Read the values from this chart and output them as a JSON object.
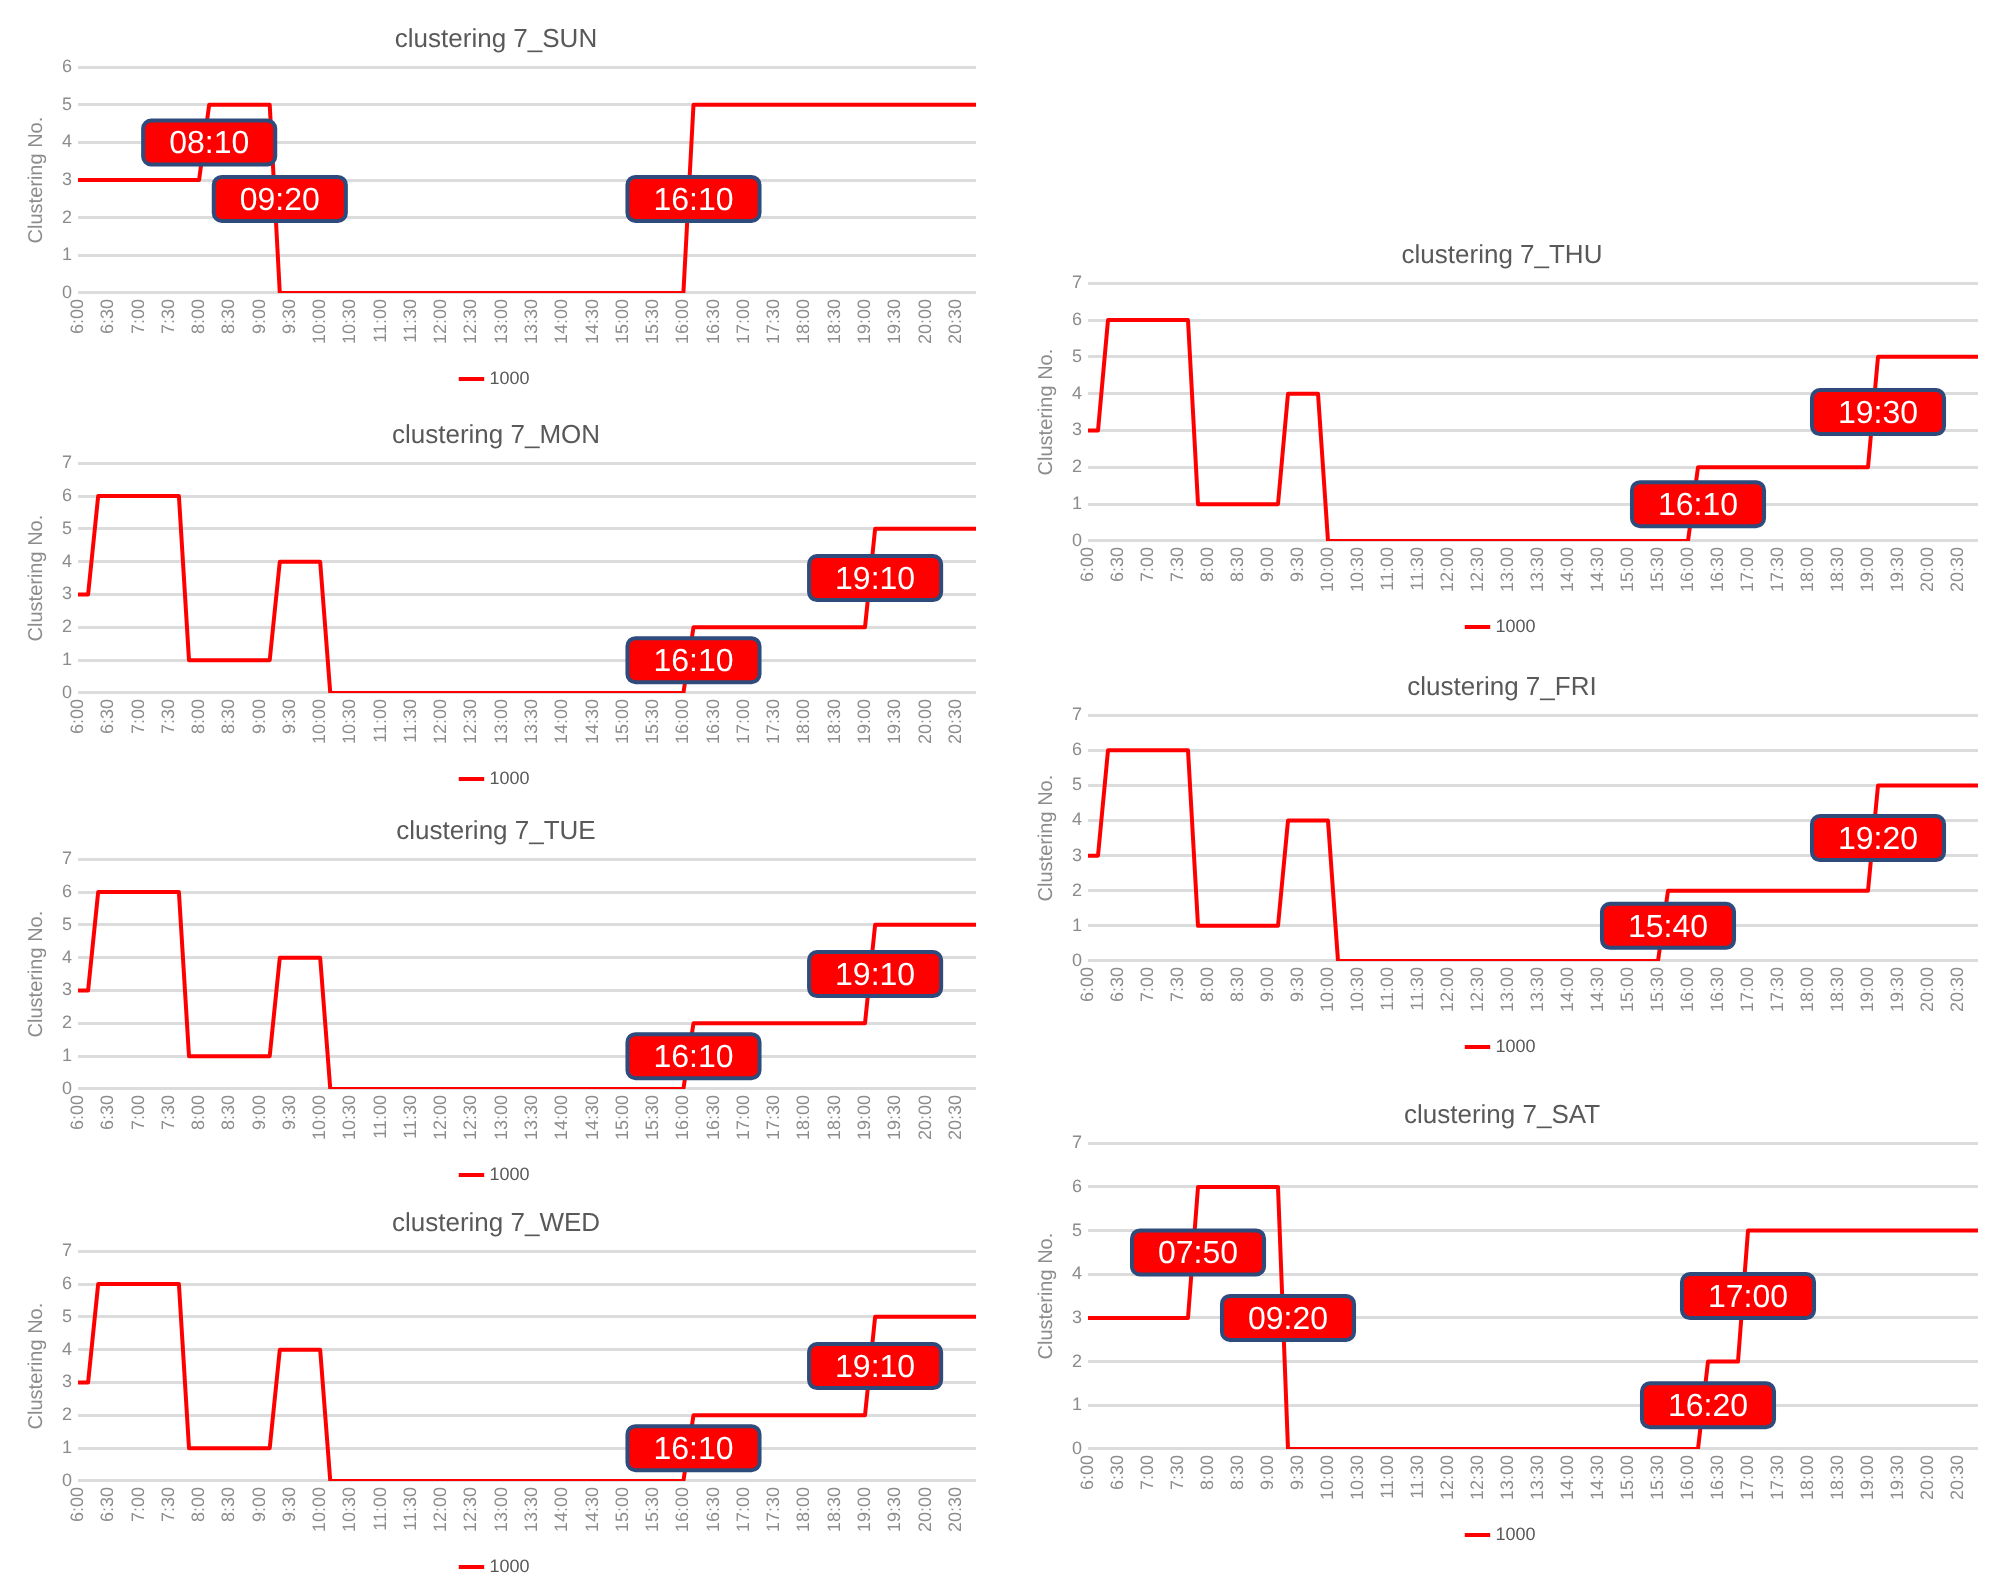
{
  "chart_data": [
    {
      "type": "line",
      "title": "clustering 7_SUN",
      "ylabel": "Clustering No.",
      "legend": "bottom",
      "grid": "y",
      "marker": "none",
      "line_style": "solid",
      "xlim": [
        6,
        20.8333
      ],
      "ylim": [
        0,
        6
      ],
      "yticks": [
        0,
        1,
        2,
        3,
        4,
        5,
        6
      ],
      "xticks": [
        {
          "value": 6,
          "label": "6:00"
        },
        {
          "value": 6.5,
          "label": "6:30"
        },
        {
          "value": 7,
          "label": "7:00"
        },
        {
          "value": 7.5,
          "label": "7:30"
        },
        {
          "value": 8,
          "label": "8:00"
        },
        {
          "value": 8.5,
          "label": "8:30"
        },
        {
          "value": 9,
          "label": "9:00"
        },
        {
          "value": 9.5,
          "label": "9:30"
        },
        {
          "value": 10,
          "label": "10:00"
        },
        {
          "value": 10.5,
          "label": "10:30"
        },
        {
          "value": 11,
          "label": "11:00"
        },
        {
          "value": 11.5,
          "label": "11:30"
        },
        {
          "value": 12,
          "label": "12:00"
        },
        {
          "value": 12.5,
          "label": "12:30"
        },
        {
          "value": 13,
          "label": "13:00"
        },
        {
          "value": 13.5,
          "label": "13:30"
        },
        {
          "value": 14,
          "label": "14:00"
        },
        {
          "value": 14.5,
          "label": "14:30"
        },
        {
          "value": 15,
          "label": "15:00"
        },
        {
          "value": 15.5,
          "label": "15:30"
        },
        {
          "value": 16,
          "label": "16:00"
        },
        {
          "value": 16.5,
          "label": "16:30"
        },
        {
          "value": 17,
          "label": "17:00"
        },
        {
          "value": 17.5,
          "label": "17:30"
        },
        {
          "value": 18,
          "label": "18:00"
        },
        {
          "value": 18.5,
          "label": "18:30"
        },
        {
          "value": 19,
          "label": "19:00"
        },
        {
          "value": 19.5,
          "label": "19:30"
        },
        {
          "value": 20,
          "label": "20:00"
        },
        {
          "value": 20.5,
          "label": "20:30"
        }
      ],
      "series": [
        {
          "name": "1000",
          "color": "#ff0000",
          "x": [
            6,
            8,
            8.1667,
            9.1667,
            9.3333,
            16,
            16.1667,
            20.8333
          ],
          "values": [
            3,
            3,
            5,
            5,
            0,
            0,
            5,
            5
          ]
        }
      ],
      "annotations": [
        {
          "text": "08:10",
          "x": 8.1667,
          "y": 4
        },
        {
          "text": "09:20",
          "x": 9.3333,
          "y": 2.5
        },
        {
          "text": "16:10",
          "x": 16.1667,
          "y": 2.5
        }
      ]
    },
    {
      "type": "line",
      "title": "clustering 7_MON",
      "ylabel": "Clustering No.",
      "legend": "bottom",
      "grid": "y",
      "marker": "none",
      "line_style": "solid",
      "xlim": [
        6,
        20.8333
      ],
      "ylim": [
        0,
        7
      ],
      "yticks": [
        0,
        1,
        2,
        3,
        4,
        5,
        6,
        7
      ],
      "xticks": [
        {
          "value": 6,
          "label": "6:00"
        },
        {
          "value": 6.5,
          "label": "6:30"
        },
        {
          "value": 7,
          "label": "7:00"
        },
        {
          "value": 7.5,
          "label": "7:30"
        },
        {
          "value": 8,
          "label": "8:00"
        },
        {
          "value": 8.5,
          "label": "8:30"
        },
        {
          "value": 9,
          "label": "9:00"
        },
        {
          "value": 9.5,
          "label": "9:30"
        },
        {
          "value": 10,
          "label": "10:00"
        },
        {
          "value": 10.5,
          "label": "10:30"
        },
        {
          "value": 11,
          "label": "11:00"
        },
        {
          "value": 11.5,
          "label": "11:30"
        },
        {
          "value": 12,
          "label": "12:00"
        },
        {
          "value": 12.5,
          "label": "12:30"
        },
        {
          "value": 13,
          "label": "13:00"
        },
        {
          "value": 13.5,
          "label": "13:30"
        },
        {
          "value": 14,
          "label": "14:00"
        },
        {
          "value": 14.5,
          "label": "14:30"
        },
        {
          "value": 15,
          "label": "15:00"
        },
        {
          "value": 15.5,
          "label": "15:30"
        },
        {
          "value": 16,
          "label": "16:00"
        },
        {
          "value": 16.5,
          "label": "16:30"
        },
        {
          "value": 17,
          "label": "17:00"
        },
        {
          "value": 17.5,
          "label": "17:30"
        },
        {
          "value": 18,
          "label": "18:00"
        },
        {
          "value": 18.5,
          "label": "18:30"
        },
        {
          "value": 19,
          "label": "19:00"
        },
        {
          "value": 19.5,
          "label": "19:30"
        },
        {
          "value": 20,
          "label": "20:00"
        },
        {
          "value": 20.5,
          "label": "20:30"
        }
      ],
      "series": [
        {
          "name": "1000",
          "color": "#ff0000",
          "x": [
            6,
            6.1667,
            6.3333,
            7.6667,
            7.8333,
            9.1667,
            9.3333,
            10,
            10.1667,
            16,
            16.1667,
            19,
            19.1667,
            20.8333
          ],
          "values": [
            3,
            3,
            6,
            6,
            1,
            1,
            4,
            4,
            0,
            0,
            2,
            2,
            5,
            5
          ]
        }
      ],
      "annotations": [
        {
          "text": "16:10",
          "x": 16.1667,
          "y": 1
        },
        {
          "text": "19:10",
          "x": 19.1667,
          "y": 3.5
        }
      ]
    },
    {
      "type": "line",
      "title": "clustering 7_TUE",
      "ylabel": "Clustering No.",
      "legend": "bottom",
      "grid": "y",
      "marker": "none",
      "line_style": "solid",
      "xlim": [
        6,
        20.8333
      ],
      "ylim": [
        0,
        7
      ],
      "yticks": [
        0,
        1,
        2,
        3,
        4,
        5,
        6,
        7
      ],
      "xticks": [
        {
          "value": 6,
          "label": "6:00"
        },
        {
          "value": 6.5,
          "label": "6:30"
        },
        {
          "value": 7,
          "label": "7:00"
        },
        {
          "value": 7.5,
          "label": "7:30"
        },
        {
          "value": 8,
          "label": "8:00"
        },
        {
          "value": 8.5,
          "label": "8:30"
        },
        {
          "value": 9,
          "label": "9:00"
        },
        {
          "value": 9.5,
          "label": "9:30"
        },
        {
          "value": 10,
          "label": "10:00"
        },
        {
          "value": 10.5,
          "label": "10:30"
        },
        {
          "value": 11,
          "label": "11:00"
        },
        {
          "value": 11.5,
          "label": "11:30"
        },
        {
          "value": 12,
          "label": "12:00"
        },
        {
          "value": 12.5,
          "label": "12:30"
        },
        {
          "value": 13,
          "label": "13:00"
        },
        {
          "value": 13.5,
          "label": "13:30"
        },
        {
          "value": 14,
          "label": "14:00"
        },
        {
          "value": 14.5,
          "label": "14:30"
        },
        {
          "value": 15,
          "label": "15:00"
        },
        {
          "value": 15.5,
          "label": "15:30"
        },
        {
          "value": 16,
          "label": "16:00"
        },
        {
          "value": 16.5,
          "label": "16:30"
        },
        {
          "value": 17,
          "label": "17:00"
        },
        {
          "value": 17.5,
          "label": "17:30"
        },
        {
          "value": 18,
          "label": "18:00"
        },
        {
          "value": 18.5,
          "label": "18:30"
        },
        {
          "value": 19,
          "label": "19:00"
        },
        {
          "value": 19.5,
          "label": "19:30"
        },
        {
          "value": 20,
          "label": "20:00"
        },
        {
          "value": 20.5,
          "label": "20:30"
        }
      ],
      "series": [
        {
          "name": "1000",
          "color": "#ff0000",
          "x": [
            6,
            6.1667,
            6.3333,
            7.6667,
            7.8333,
            9.1667,
            9.3333,
            10,
            10.1667,
            16,
            16.1667,
            19,
            19.1667,
            20.8333
          ],
          "values": [
            3,
            3,
            6,
            6,
            1,
            1,
            4,
            4,
            0,
            0,
            2,
            2,
            5,
            5
          ]
        }
      ],
      "annotations": [
        {
          "text": "16:10",
          "x": 16.1667,
          "y": 1
        },
        {
          "text": "19:10",
          "x": 19.1667,
          "y": 3.5
        }
      ]
    },
    {
      "type": "line",
      "title": "clustering 7_WED",
      "ylabel": "Clustering No.",
      "legend": "bottom",
      "grid": "y",
      "marker": "none",
      "line_style": "solid",
      "xlim": [
        6,
        20.8333
      ],
      "ylim": [
        0,
        7
      ],
      "yticks": [
        0,
        1,
        2,
        3,
        4,
        5,
        6,
        7
      ],
      "xticks": [
        {
          "value": 6,
          "label": "6:00"
        },
        {
          "value": 6.5,
          "label": "6:30"
        },
        {
          "value": 7,
          "label": "7:00"
        },
        {
          "value": 7.5,
          "label": "7:30"
        },
        {
          "value": 8,
          "label": "8:00"
        },
        {
          "value": 8.5,
          "label": "8:30"
        },
        {
          "value": 9,
          "label": "9:00"
        },
        {
          "value": 9.5,
          "label": "9:30"
        },
        {
          "value": 10,
          "label": "10:00"
        },
        {
          "value": 10.5,
          "label": "10:30"
        },
        {
          "value": 11,
          "label": "11:00"
        },
        {
          "value": 11.5,
          "label": "11:30"
        },
        {
          "value": 12,
          "label": "12:00"
        },
        {
          "value": 12.5,
          "label": "12:30"
        },
        {
          "value": 13,
          "label": "13:00"
        },
        {
          "value": 13.5,
          "label": "13:30"
        },
        {
          "value": 14,
          "label": "14:00"
        },
        {
          "value": 14.5,
          "label": "14:30"
        },
        {
          "value": 15,
          "label": "15:00"
        },
        {
          "value": 15.5,
          "label": "15:30"
        },
        {
          "value": 16,
          "label": "16:00"
        },
        {
          "value": 16.5,
          "label": "16:30"
        },
        {
          "value": 17,
          "label": "17:00"
        },
        {
          "value": 17.5,
          "label": "17:30"
        },
        {
          "value": 18,
          "label": "18:00"
        },
        {
          "value": 18.5,
          "label": "18:30"
        },
        {
          "value": 19,
          "label": "19:00"
        },
        {
          "value": 19.5,
          "label": "19:30"
        },
        {
          "value": 20,
          "label": "20:00"
        },
        {
          "value": 20.5,
          "label": "20:30"
        }
      ],
      "series": [
        {
          "name": "1000",
          "color": "#ff0000",
          "x": [
            6,
            6.1667,
            6.3333,
            7.6667,
            7.8333,
            9.1667,
            9.3333,
            10,
            10.1667,
            16,
            16.1667,
            19,
            19.1667,
            20.8333
          ],
          "values": [
            3,
            3,
            6,
            6,
            1,
            1,
            4,
            4,
            0,
            0,
            2,
            2,
            5,
            5
          ]
        }
      ],
      "annotations": [
        {
          "text": "16:10",
          "x": 16.1667,
          "y": 1
        },
        {
          "text": "19:10",
          "x": 19.1667,
          "y": 3.5
        }
      ]
    },
    {
      "type": "line",
      "title": "clustering 7_THU",
      "ylabel": "Clustering No.",
      "legend": "bottom",
      "grid": "y",
      "marker": "none",
      "line_style": "solid",
      "xlim": [
        6,
        20.8333
      ],
      "ylim": [
        0,
        7
      ],
      "yticks": [
        0,
        1,
        2,
        3,
        4,
        5,
        6,
        7
      ],
      "xticks": [
        {
          "value": 6,
          "label": "6:00"
        },
        {
          "value": 6.5,
          "label": "6:30"
        },
        {
          "value": 7,
          "label": "7:00"
        },
        {
          "value": 7.5,
          "label": "7:30"
        },
        {
          "value": 8,
          "label": "8:00"
        },
        {
          "value": 8.5,
          "label": "8:30"
        },
        {
          "value": 9,
          "label": "9:00"
        },
        {
          "value": 9.5,
          "label": "9:30"
        },
        {
          "value": 10,
          "label": "10:00"
        },
        {
          "value": 10.5,
          "label": "10:30"
        },
        {
          "value": 11,
          "label": "11:00"
        },
        {
          "value": 11.5,
          "label": "11:30"
        },
        {
          "value": 12,
          "label": "12:00"
        },
        {
          "value": 12.5,
          "label": "12:30"
        },
        {
          "value": 13,
          "label": "13:00"
        },
        {
          "value": 13.5,
          "label": "13:30"
        },
        {
          "value": 14,
          "label": "14:00"
        },
        {
          "value": 14.5,
          "label": "14:30"
        },
        {
          "value": 15,
          "label": "15:00"
        },
        {
          "value": 15.5,
          "label": "15:30"
        },
        {
          "value": 16,
          "label": "16:00"
        },
        {
          "value": 16.5,
          "label": "16:30"
        },
        {
          "value": 17,
          "label": "17:00"
        },
        {
          "value": 17.5,
          "label": "17:30"
        },
        {
          "value": 18,
          "label": "18:00"
        },
        {
          "value": 18.5,
          "label": "18:30"
        },
        {
          "value": 19,
          "label": "19:00"
        },
        {
          "value": 19.5,
          "label": "19:30"
        },
        {
          "value": 20,
          "label": "20:00"
        },
        {
          "value": 20.5,
          "label": "20:30"
        }
      ],
      "series": [
        {
          "name": "1000",
          "color": "#ff0000",
          "x": [
            6,
            6.1667,
            6.3333,
            7.6667,
            7.8333,
            9.1667,
            9.3333,
            9.8333,
            10,
            16,
            16.1667,
            19,
            19.1667,
            20.8333
          ],
          "values": [
            3,
            3,
            6,
            6,
            1,
            1,
            4,
            4,
            0,
            0,
            2,
            2,
            5,
            5
          ]
        }
      ],
      "annotations": [
        {
          "text": "16:10",
          "x": 16.1667,
          "y": 1
        },
        {
          "text": "19:30",
          "x": 19.1667,
          "y": 3.5
        }
      ]
    },
    {
      "type": "line",
      "title": "clustering 7_FRI",
      "ylabel": "Clustering No.",
      "legend": "bottom",
      "grid": "y",
      "marker": "none",
      "line_style": "solid",
      "xlim": [
        6,
        20.8333
      ],
      "ylim": [
        0,
        7
      ],
      "yticks": [
        0,
        1,
        2,
        3,
        4,
        5,
        6,
        7
      ],
      "xticks": [
        {
          "value": 6,
          "label": "6:00"
        },
        {
          "value": 6.5,
          "label": "6:30"
        },
        {
          "value": 7,
          "label": "7:00"
        },
        {
          "value": 7.5,
          "label": "7:30"
        },
        {
          "value": 8,
          "label": "8:00"
        },
        {
          "value": 8.5,
          "label": "8:30"
        },
        {
          "value": 9,
          "label": "9:00"
        },
        {
          "value": 9.5,
          "label": "9:30"
        },
        {
          "value": 10,
          "label": "10:00"
        },
        {
          "value": 10.5,
          "label": "10:30"
        },
        {
          "value": 11,
          "label": "11:00"
        },
        {
          "value": 11.5,
          "label": "11:30"
        },
        {
          "value": 12,
          "label": "12:00"
        },
        {
          "value": 12.5,
          "label": "12:30"
        },
        {
          "value": 13,
          "label": "13:00"
        },
        {
          "value": 13.5,
          "label": "13:30"
        },
        {
          "value": 14,
          "label": "14:00"
        },
        {
          "value": 14.5,
          "label": "14:30"
        },
        {
          "value": 15,
          "label": "15:00"
        },
        {
          "value": 15.5,
          "label": "15:30"
        },
        {
          "value": 16,
          "label": "16:00"
        },
        {
          "value": 16.5,
          "label": "16:30"
        },
        {
          "value": 17,
          "label": "17:00"
        },
        {
          "value": 17.5,
          "label": "17:30"
        },
        {
          "value": 18,
          "label": "18:00"
        },
        {
          "value": 18.5,
          "label": "18:30"
        },
        {
          "value": 19,
          "label": "19:00"
        },
        {
          "value": 19.5,
          "label": "19:30"
        },
        {
          "value": 20,
          "label": "20:00"
        },
        {
          "value": 20.5,
          "label": "20:30"
        }
      ],
      "series": [
        {
          "name": "1000",
          "color": "#ff0000",
          "x": [
            6,
            6.1667,
            6.3333,
            7.6667,
            7.8333,
            9.1667,
            9.3333,
            10,
            10.1667,
            15.5,
            15.6667,
            19,
            19.1667,
            20.8333
          ],
          "values": [
            3,
            3,
            6,
            6,
            1,
            1,
            4,
            4,
            0,
            0,
            2,
            2,
            5,
            5
          ]
        }
      ],
      "annotations": [
        {
          "text": "15:40",
          "x": 15.6667,
          "y": 1
        },
        {
          "text": "19:20",
          "x": 19.1667,
          "y": 3.5
        }
      ]
    },
    {
      "type": "line",
      "title": "clustering 7_SAT",
      "ylabel": "Clustering No.",
      "legend": "bottom",
      "grid": "y",
      "marker": "none",
      "line_style": "solid",
      "xlim": [
        6,
        20.8333
      ],
      "ylim": [
        0,
        7
      ],
      "yticks": [
        0,
        1,
        2,
        3,
        4,
        5,
        6,
        7
      ],
      "xticks": [
        {
          "value": 6,
          "label": "6:00"
        },
        {
          "value": 6.5,
          "label": "6:30"
        },
        {
          "value": 7,
          "label": "7:00"
        },
        {
          "value": 7.5,
          "label": "7:30"
        },
        {
          "value": 8,
          "label": "8:00"
        },
        {
          "value": 8.5,
          "label": "8:30"
        },
        {
          "value": 9,
          "label": "9:00"
        },
        {
          "value": 9.5,
          "label": "9:30"
        },
        {
          "value": 10,
          "label": "10:00"
        },
        {
          "value": 10.5,
          "label": "10:30"
        },
        {
          "value": 11,
          "label": "11:00"
        },
        {
          "value": 11.5,
          "label": "11:30"
        },
        {
          "value": 12,
          "label": "12:00"
        },
        {
          "value": 12.5,
          "label": "12:30"
        },
        {
          "value": 13,
          "label": "13:00"
        },
        {
          "value": 13.5,
          "label": "13:30"
        },
        {
          "value": 14,
          "label": "14:00"
        },
        {
          "value": 14.5,
          "label": "14:30"
        },
        {
          "value": 15,
          "label": "15:00"
        },
        {
          "value": 15.5,
          "label": "15:30"
        },
        {
          "value": 16,
          "label": "16:00"
        },
        {
          "value": 16.5,
          "label": "16:30"
        },
        {
          "value": 17,
          "label": "17:00"
        },
        {
          "value": 17.5,
          "label": "17:30"
        },
        {
          "value": 18,
          "label": "18:00"
        },
        {
          "value": 18.5,
          "label": "18:30"
        },
        {
          "value": 19,
          "label": "19:00"
        },
        {
          "value": 19.5,
          "label": "19:30"
        },
        {
          "value": 20,
          "label": "20:00"
        },
        {
          "value": 20.5,
          "label": "20:30"
        }
      ],
      "series": [
        {
          "name": "1000",
          "color": "#ff0000",
          "x": [
            6,
            7.6667,
            7.8333,
            9.1667,
            9.3333,
            16.1667,
            16.3333,
            16.8333,
            17,
            20.8333
          ],
          "values": [
            3,
            3,
            6,
            6,
            0,
            0,
            2,
            2,
            5,
            5
          ]
        }
      ],
      "annotations": [
        {
          "text": "07:50",
          "x": 7.8333,
          "y": 4.5
        },
        {
          "text": "09:20",
          "x": 9.3333,
          "y": 3
        },
        {
          "text": "16:20",
          "x": 16.3333,
          "y": 1
        },
        {
          "text": "17:00",
          "x": 17,
          "y": 3.5
        }
      ]
    }
  ]
}
